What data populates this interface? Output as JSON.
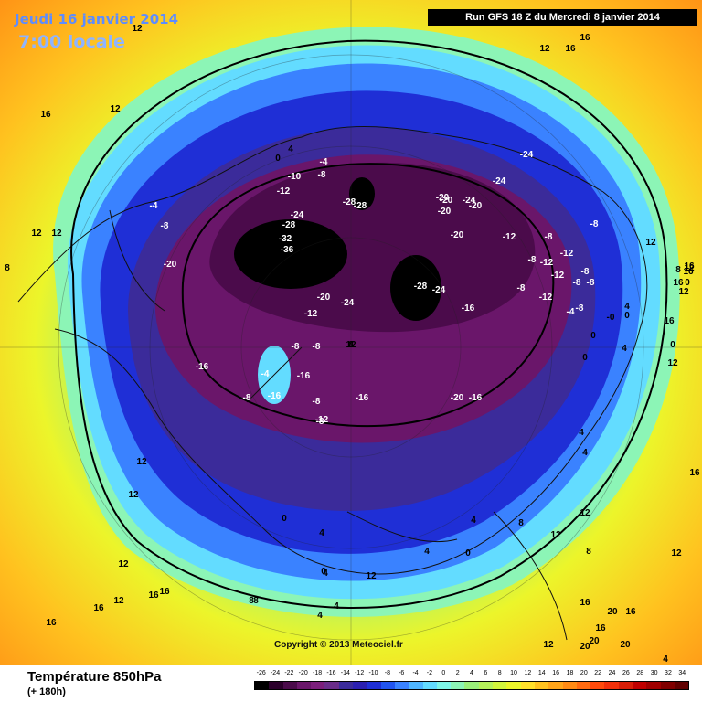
{
  "header": {
    "date_line": "Jeudi 16 janvier 2014",
    "time_line": "7:00 locale",
    "run_info": "Run GFS 18 Z du Mercredi 8 janvier 2014"
  },
  "footer": {
    "title": "Température 850hPa",
    "lead_time": "(+ 180h)",
    "copyright": "Copyright © 2013 Meteociel.fr"
  },
  "legend": {
    "values": [
      "-26",
      "-24",
      "-22",
      "-20",
      "-18",
      "-16",
      "-14",
      "-12",
      "-10",
      "-8",
      "-6",
      "-4",
      "-2",
      "0",
      "2",
      "4",
      "6",
      "8",
      "10",
      "12",
      "14",
      "16",
      "18",
      "20",
      "22",
      "24",
      "26",
      "28",
      "30",
      "32",
      "34"
    ],
    "colors": [
      "#000000",
      "#2b002b",
      "#4b0b4b",
      "#6a166a",
      "#7c1f7c",
      "#6a2d8a",
      "#3b2b9a",
      "#2b1fb0",
      "#1f2fd6",
      "#2255f0",
      "#3a82ff",
      "#4fb6ff",
      "#63dcff",
      "#7ef7e8",
      "#8cf5b6",
      "#9bf07a",
      "#b6f25a",
      "#d2f53c",
      "#ecf52a",
      "#ffe02a",
      "#ffc21f",
      "#ffa51a",
      "#ff8a14",
      "#ff6a10",
      "#ff4a0c",
      "#f2300a",
      "#d81e08",
      "#c00000",
      "#a00000",
      "#800000",
      "#600000"
    ]
  },
  "map_labels": [
    {
      "text": "16",
      "color": "#000"
    },
    {
      "text": "12",
      "color": "#000"
    },
    {
      "text": "12",
      "color": "#000"
    },
    {
      "text": "8",
      "color": "#000"
    },
    {
      "text": "12",
      "color": "#000"
    },
    {
      "text": "12",
      "color": "#000"
    },
    {
      "text": "16",
      "color": "#000"
    },
    {
      "text": "12",
      "color": "#000"
    },
    {
      "text": "8",
      "color": "#000"
    },
    {
      "text": "4",
      "color": "#000"
    },
    {
      "text": "0",
      "color": "#000"
    },
    {
      "text": "-4",
      "color": "#fff"
    },
    {
      "text": "-8",
      "color": "#fff"
    },
    {
      "text": "-10",
      "color": "#fff"
    },
    {
      "text": "-4",
      "color": "#fff"
    },
    {
      "text": "-8",
      "color": "#fff"
    },
    {
      "text": "-12",
      "color": "#fff"
    },
    {
      "text": "-20",
      "color": "#fff"
    },
    {
      "text": "-28",
      "color": "#fff"
    },
    {
      "text": "-28",
      "color": "#fff"
    },
    {
      "text": "-24",
      "color": "#fff"
    },
    {
      "text": "-28",
      "color": "#fff"
    },
    {
      "text": "-32",
      "color": "#fff"
    },
    {
      "text": "-36",
      "color": "#fff"
    },
    {
      "text": "-24",
      "color": "#fff"
    },
    {
      "text": "-20",
      "color": "#fff"
    },
    {
      "text": "-24",
      "color": "#fff"
    },
    {
      "text": "-20",
      "color": "#fff"
    },
    {
      "text": "-20",
      "color": "#fff"
    },
    {
      "text": "-24",
      "color": "#fff"
    },
    {
      "text": "-20",
      "color": "#fff"
    },
    {
      "text": "-20",
      "color": "#fff"
    },
    {
      "text": "-12",
      "color": "#fff"
    },
    {
      "text": "-8",
      "color": "#fff"
    },
    {
      "text": "-12",
      "color": "#fff"
    },
    {
      "text": "-8",
      "color": "#fff"
    },
    {
      "text": "-12",
      "color": "#fff"
    },
    {
      "text": "-8",
      "color": "#fff"
    },
    {
      "text": "-8",
      "color": "#fff"
    },
    {
      "text": "-12",
      "color": "#fff"
    },
    {
      "text": "-8",
      "color": "#fff"
    },
    {
      "text": "-8",
      "color": "#fff"
    },
    {
      "text": "-28",
      "color": "#fff"
    },
    {
      "text": "-24",
      "color": "#fff"
    },
    {
      "text": "-16",
      "color": "#fff"
    },
    {
      "text": "-12",
      "color": "#fff"
    },
    {
      "text": "-8",
      "color": "#fff"
    },
    {
      "text": "-4",
      "color": "#fff"
    },
    {
      "text": "-8",
      "color": "#fff"
    },
    {
      "text": "0",
      "color": "#000"
    },
    {
      "text": "-16",
      "color": "#fff"
    },
    {
      "text": "-12",
      "color": "#fff"
    },
    {
      "text": "-24",
      "color": "#fff"
    },
    {
      "text": "-20",
      "color": "#fff"
    },
    {
      "text": "-8",
      "color": "#fff"
    },
    {
      "text": "-8",
      "color": "#fff"
    },
    {
      "text": "-16",
      "color": "#fff"
    },
    {
      "text": "-16",
      "color": "#fff"
    },
    {
      "text": "-8",
      "color": "#fff"
    },
    {
      "text": "-8",
      "color": "#fff"
    },
    {
      "text": "-16",
      "color": "#fff"
    },
    {
      "text": "-12",
      "color": "#fff"
    },
    {
      "text": "-16",
      "color": "#fff"
    },
    {
      "text": "-20",
      "color": "#fff"
    },
    {
      "text": "-8",
      "color": "#fff"
    },
    {
      "text": "-4",
      "color": "#fff"
    },
    {
      "text": "0",
      "color": "#000"
    },
    {
      "text": "4",
      "color": "#000"
    },
    {
      "text": "0",
      "color": "#000"
    },
    {
      "text": "4",
      "color": "#000"
    },
    {
      "text": "4",
      "color": "#000"
    },
    {
      "text": "12",
      "color": "#000"
    },
    {
      "text": "12",
      "color": "#000"
    },
    {
      "text": "16",
      "color": "#000"
    },
    {
      "text": "16",
      "color": "#000"
    },
    {
      "text": "12",
      "color": "#000"
    },
    {
      "text": "12",
      "color": "#000"
    },
    {
      "text": "16",
      "color": "#000"
    },
    {
      "text": "12",
      "color": "#000"
    },
    {
      "text": "16",
      "color": "#000"
    },
    {
      "text": "8",
      "color": "#000"
    },
    {
      "text": "12",
      "color": "#000"
    },
    {
      "text": "12",
      "color": "#000"
    },
    {
      "text": "12",
      "color": "#000"
    },
    {
      "text": "16",
      "color": "#000"
    },
    {
      "text": "12",
      "color": "#000"
    },
    {
      "text": "16",
      "color": "#000"
    },
    {
      "text": "8",
      "color": "#000"
    },
    {
      "text": "4",
      "color": "#000"
    },
    {
      "text": "0",
      "color": "#000"
    },
    {
      "text": "4",
      "color": "#000"
    },
    {
      "text": "0",
      "color": "#000"
    },
    {
      "text": "-0",
      "color": "#000"
    },
    {
      "text": "0",
      "color": "#000"
    },
    {
      "text": "4",
      "color": "#000"
    },
    {
      "text": "4",
      "color": "#000"
    },
    {
      "text": "0",
      "color": "#000"
    },
    {
      "text": "4",
      "color": "#000"
    },
    {
      "text": "8",
      "color": "#000"
    },
    {
      "text": "12",
      "color": "#000"
    },
    {
      "text": "4",
      "color": "#000"
    },
    {
      "text": "4",
      "color": "#000"
    },
    {
      "text": "12",
      "color": "#000"
    },
    {
      "text": "16",
      "color": "#000"
    },
    {
      "text": "16",
      "color": "#000"
    },
    {
      "text": "20",
      "color": "#000"
    },
    {
      "text": "16",
      "color": "#000"
    },
    {
      "text": "20",
      "color": "#000"
    },
    {
      "text": "16",
      "color": "#000"
    },
    {
      "text": "20",
      "color": "#000"
    },
    {
      "text": "20",
      "color": "#000"
    },
    {
      "text": "16",
      "color": "#000"
    },
    {
      "text": "12",
      "color": "#000"
    },
    {
      "text": "8",
      "color": "#000"
    },
    {
      "text": "16",
      "color": "#000"
    },
    {
      "text": "16",
      "color": "#000"
    },
    {
      "text": "12",
      "color": "#000"
    },
    {
      "text": "0",
      "color": "#000"
    },
    {
      "text": "4",
      "color": "#000"
    },
    {
      "text": "4",
      "color": "#000"
    },
    {
      "text": "8",
      "color": "#000"
    },
    {
      "text": "12",
      "color": "#000"
    }
  ]
}
